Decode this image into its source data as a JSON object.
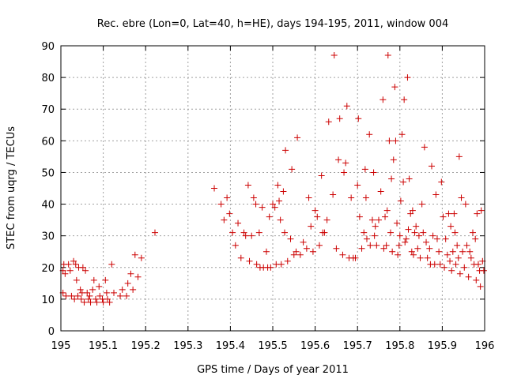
{
  "chart_data": {
    "type": "scatter",
    "title": "Rec. ebre (Lon=0, Lat=40, h=HE), days 194-195, 2011, window 004",
    "xlabel": "GPS time / Days of year 2011",
    "ylabel": "STEC from uqrg / TECUs",
    "xlim": [
      195,
      196
    ],
    "ylim": [
      0,
      90
    ],
    "xticks": [
      "195",
      "195.1",
      "195.2",
      "195.3",
      "195.4",
      "195.5",
      "195.6",
      "195.7",
      "195.8",
      "195.9",
      "196"
    ],
    "yticks": [
      "0",
      "10",
      "20",
      "30",
      "40",
      "50",
      "60",
      "70",
      "80",
      "90"
    ],
    "grid": true,
    "marker": "+",
    "marker_color": "#cc0000",
    "points": [
      [
        195.005,
        12
      ],
      [
        195.005,
        19
      ],
      [
        195.007,
        21
      ],
      [
        195.01,
        18
      ],
      [
        195.012,
        11
      ],
      [
        195.018,
        21
      ],
      [
        195.022,
        19
      ],
      [
        195.025,
        11
      ],
      [
        195.03,
        22
      ],
      [
        195.032,
        10
      ],
      [
        195.035,
        21
      ],
      [
        195.037,
        16
      ],
      [
        195.04,
        11
      ],
      [
        195.042,
        20
      ],
      [
        195.046,
        13
      ],
      [
        195.048,
        10
      ],
      [
        195.05,
        12
      ],
      [
        195.052,
        20
      ],
      [
        195.055,
        9
      ],
      [
        195.058,
        19
      ],
      [
        195.062,
        12
      ],
      [
        195.065,
        10
      ],
      [
        195.068,
        11
      ],
      [
        195.07,
        9
      ],
      [
        195.075,
        13
      ],
      [
        195.078,
        16
      ],
      [
        195.082,
        10
      ],
      [
        195.085,
        9
      ],
      [
        195.09,
        14
      ],
      [
        195.092,
        11
      ],
      [
        195.098,
        10
      ],
      [
        195.1,
        9
      ],
      [
        195.105,
        16
      ],
      [
        195.108,
        12
      ],
      [
        195.11,
        10
      ],
      [
        195.115,
        9
      ],
      [
        195.12,
        21
      ],
      [
        195.125,
        12
      ],
      [
        195.14,
        11
      ],
      [
        195.145,
        13
      ],
      [
        195.155,
        11
      ],
      [
        195.158,
        15
      ],
      [
        195.165,
        18
      ],
      [
        195.17,
        13
      ],
      [
        195.175,
        24
      ],
      [
        195.182,
        17
      ],
      [
        195.19,
        23
      ],
      [
        195.222,
        31
      ],
      [
        195.362,
        45
      ],
      [
        195.378,
        40
      ],
      [
        195.385,
        35
      ],
      [
        195.392,
        42
      ],
      [
        195.398,
        37
      ],
      [
        195.405,
        31
      ],
      [
        195.412,
        27
      ],
      [
        195.418,
        34
      ],
      [
        195.425,
        23
      ],
      [
        195.432,
        31
      ],
      [
        195.436,
        30
      ],
      [
        195.442,
        46
      ],
      [
        195.445,
        22
      ],
      [
        195.45,
        30
      ],
      [
        195.455,
        42
      ],
      [
        195.46,
        40
      ],
      [
        195.462,
        21
      ],
      [
        195.468,
        31
      ],
      [
        195.47,
        20
      ],
      [
        195.475,
        39
      ],
      [
        195.478,
        20
      ],
      [
        195.485,
        25
      ],
      [
        195.488,
        20
      ],
      [
        195.492,
        36
      ],
      [
        195.495,
        20
      ],
      [
        195.5,
        40
      ],
      [
        195.505,
        39
      ],
      [
        195.508,
        21
      ],
      [
        195.512,
        46
      ],
      [
        195.515,
        41
      ],
      [
        195.518,
        35
      ],
      [
        195.52,
        21
      ],
      [
        195.525,
        44
      ],
      [
        195.528,
        31
      ],
      [
        195.53,
        57
      ],
      [
        195.535,
        22
      ],
      [
        195.542,
        29
      ],
      [
        195.545,
        51
      ],
      [
        195.55,
        24
      ],
      [
        195.555,
        25
      ],
      [
        195.558,
        61
      ],
      [
        195.565,
        24
      ],
      [
        195.572,
        28
      ],
      [
        195.58,
        26
      ],
      [
        195.585,
        42
      ],
      [
        195.59,
        33
      ],
      [
        195.595,
        25
      ],
      [
        195.6,
        38
      ],
      [
        195.605,
        36
      ],
      [
        195.61,
        27
      ],
      [
        195.615,
        49
      ],
      [
        195.618,
        31
      ],
      [
        195.622,
        31
      ],
      [
        195.628,
        35
      ],
      [
        195.632,
        66
      ],
      [
        195.642,
        43
      ],
      [
        195.645,
        87
      ],
      [
        195.65,
        26
      ],
      [
        195.655,
        54
      ],
      [
        195.658,
        67
      ],
      [
        195.665,
        24
      ],
      [
        195.668,
        50
      ],
      [
        195.672,
        53
      ],
      [
        195.675,
        71
      ],
      [
        195.68,
        23
      ],
      [
        195.685,
        42
      ],
      [
        195.69,
        23
      ],
      [
        195.695,
        23
      ],
      [
        195.7,
        46
      ],
      [
        195.702,
        67
      ],
      [
        195.705,
        36
      ],
      [
        195.71,
        26
      ],
      [
        195.715,
        31
      ],
      [
        195.718,
        51
      ],
      [
        195.72,
        42
      ],
      [
        195.722,
        29
      ],
      [
        195.728,
        62
      ],
      [
        195.73,
        27
      ],
      [
        195.735,
        35
      ],
      [
        195.738,
        50
      ],
      [
        195.74,
        30
      ],
      [
        195.742,
        33
      ],
      [
        195.745,
        27
      ],
      [
        195.75,
        35
      ],
      [
        195.755,
        44
      ],
      [
        195.76,
        73
      ],
      [
        195.762,
        26
      ],
      [
        195.765,
        36
      ],
      [
        195.768,
        27
      ],
      [
        195.77,
        38
      ],
      [
        195.772,
        87
      ],
      [
        195.775,
        60
      ],
      [
        195.778,
        31
      ],
      [
        195.78,
        48
      ],
      [
        195.782,
        25
      ],
      [
        195.785,
        54
      ],
      [
        195.788,
        77
      ],
      [
        195.79,
        60
      ],
      [
        195.793,
        34
      ],
      [
        195.795,
        24
      ],
      [
        195.798,
        27
      ],
      [
        195.8,
        30
      ],
      [
        195.802,
        41
      ],
      [
        195.805,
        62
      ],
      [
        195.808,
        47
      ],
      [
        195.81,
        73
      ],
      [
        195.812,
        28
      ],
      [
        195.815,
        29
      ],
      [
        195.818,
        80
      ],
      [
        195.82,
        32
      ],
      [
        195.822,
        48
      ],
      [
        195.825,
        37
      ],
      [
        195.828,
        25
      ],
      [
        195.83,
        38
      ],
      [
        195.832,
        24
      ],
      [
        195.835,
        31
      ],
      [
        195.838,
        33
      ],
      [
        195.842,
        26
      ],
      [
        195.845,
        30
      ],
      [
        195.848,
        23
      ],
      [
        195.852,
        40
      ],
      [
        195.855,
        31
      ],
      [
        195.858,
        58
      ],
      [
        195.862,
        28
      ],
      [
        195.865,
        23
      ],
      [
        195.87,
        26
      ],
      [
        195.872,
        21
      ],
      [
        195.875,
        52
      ],
      [
        195.878,
        30
      ],
      [
        195.882,
        21
      ],
      [
        195.885,
        43
      ],
      [
        195.888,
        29
      ],
      [
        195.892,
        25
      ],
      [
        195.895,
        21
      ],
      [
        195.898,
        47
      ],
      [
        195.902,
        36
      ],
      [
        195.905,
        20
      ],
      [
        195.908,
        29
      ],
      [
        195.912,
        24
      ],
      [
        195.915,
        37
      ],
      [
        195.918,
        22
      ],
      [
        195.92,
        33
      ],
      [
        195.922,
        19
      ],
      [
        195.925,
        25
      ],
      [
        195.928,
        37
      ],
      [
        195.93,
        31
      ],
      [
        195.932,
        21
      ],
      [
        195.935,
        27
      ],
      [
        195.938,
        23
      ],
      [
        195.94,
        55
      ],
      [
        195.942,
        18
      ],
      [
        195.945,
        42
      ],
      [
        195.948,
        25
      ],
      [
        195.952,
        20
      ],
      [
        195.955,
        40
      ],
      [
        195.958,
        27
      ],
      [
        195.962,
        17
      ],
      [
        195.965,
        25
      ],
      [
        195.968,
        23
      ],
      [
        195.972,
        31
      ],
      [
        195.975,
        21
      ],
      [
        195.978,
        29
      ],
      [
        195.98,
        16
      ],
      [
        195.982,
        37
      ],
      [
        195.985,
        21
      ],
      [
        195.988,
        19
      ],
      [
        195.99,
        14
      ],
      [
        195.992,
        38
      ],
      [
        195.995,
        22
      ],
      [
        195.998,
        19
      ]
    ]
  }
}
